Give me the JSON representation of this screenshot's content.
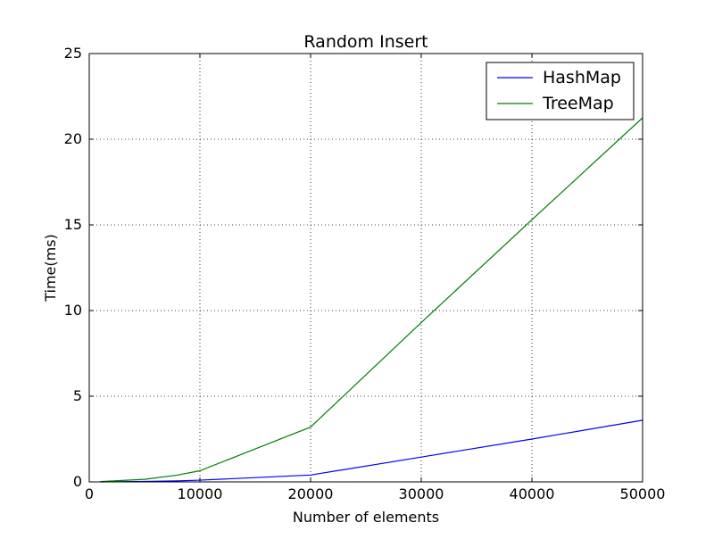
{
  "chart_data": {
    "type": "line",
    "title": "Random Insert",
    "xlabel": "Number of elements",
    "ylabel": "Time(ms)",
    "xlim": [
      0,
      50000
    ],
    "ylim": [
      0,
      25
    ],
    "xticks": [
      0,
      10000,
      20000,
      30000,
      40000,
      50000
    ],
    "xtick_labels": [
      "0",
      "10000",
      "20000",
      "30000",
      "40000",
      "50000"
    ],
    "yticks": [
      0,
      5,
      10,
      15,
      20,
      25
    ],
    "ytick_labels": [
      "0",
      "5",
      "10",
      "15",
      "20",
      "25"
    ],
    "grid": true,
    "legend_position": "top-right",
    "series": [
      {
        "name": "HashMap",
        "color": "#0000ff",
        "x": [
          1000,
          5000,
          8000,
          10000,
          20000,
          30000,
          40000,
          50000
        ],
        "y": [
          0.0,
          0.03,
          0.06,
          0.1,
          0.4,
          1.45,
          2.5,
          3.6
        ]
      },
      {
        "name": "TreeMap",
        "color": "#008000",
        "x": [
          1000,
          5000,
          8000,
          10000,
          20000,
          30000,
          40000,
          50000
        ],
        "y": [
          0.02,
          0.15,
          0.4,
          0.65,
          3.2,
          9.3,
          15.3,
          21.25
        ]
      }
    ]
  }
}
